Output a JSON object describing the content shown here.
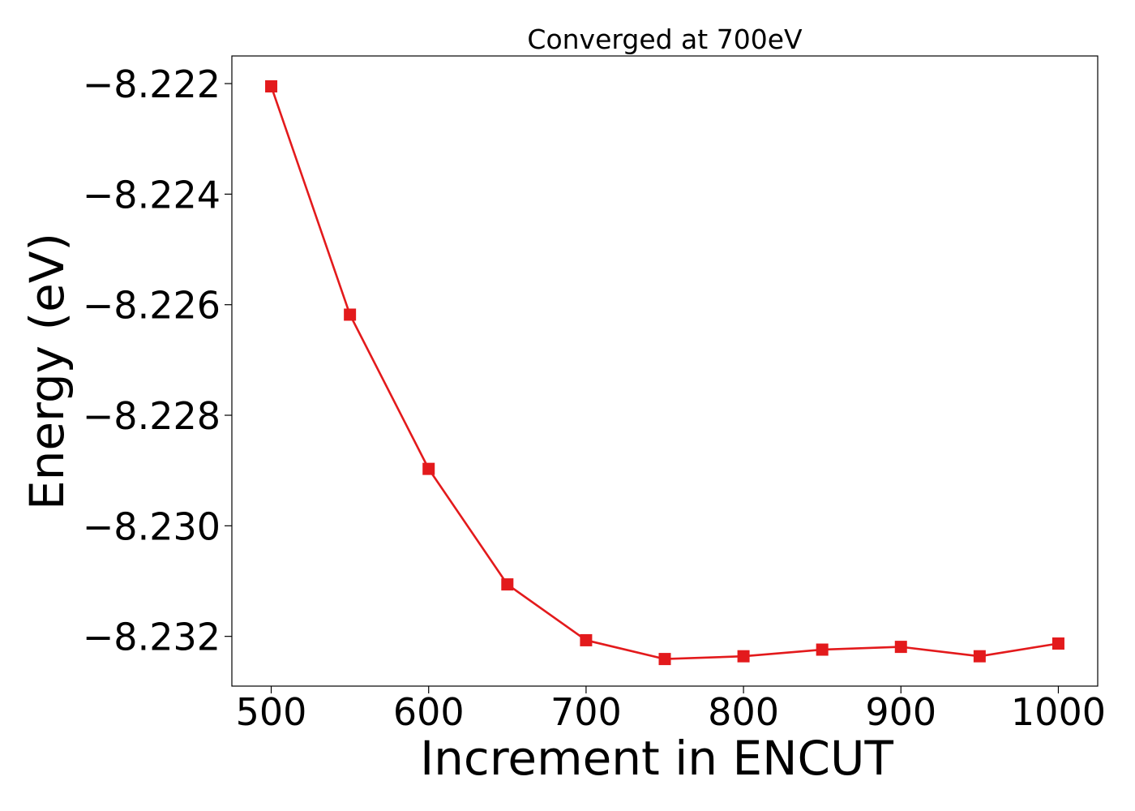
{
  "chart_data": {
    "type": "line",
    "title": "Converged at 700eV",
    "xlabel": "Increment in ENCUT",
    "ylabel": "Energy (eV)",
    "xlim": [
      475,
      1025
    ],
    "ylim": [
      -8.2329,
      -8.2215
    ],
    "xticks": [
      500,
      600,
      700,
      800,
      900,
      1000
    ],
    "yticks": [
      -8.222,
      -8.224,
      -8.226,
      -8.228,
      -8.23,
      -8.232
    ],
    "ytick_labels": [
      "−8.222",
      "−8.224",
      "−8.226",
      "−8.228",
      "−8.230",
      "−8.232"
    ],
    "grid": false,
    "marker": "square",
    "series": [
      {
        "color": "#e31a1c",
        "x": [
          500,
          550,
          600,
          650,
          700,
          750,
          800,
          850,
          900,
          950,
          1000
        ],
        "y": [
          -8.22205,
          -8.22618,
          -8.22897,
          -8.23106,
          -8.23207,
          -8.23241,
          -8.23236,
          -8.23224,
          -8.23219,
          -8.23236,
          -8.23213
        ]
      }
    ]
  }
}
